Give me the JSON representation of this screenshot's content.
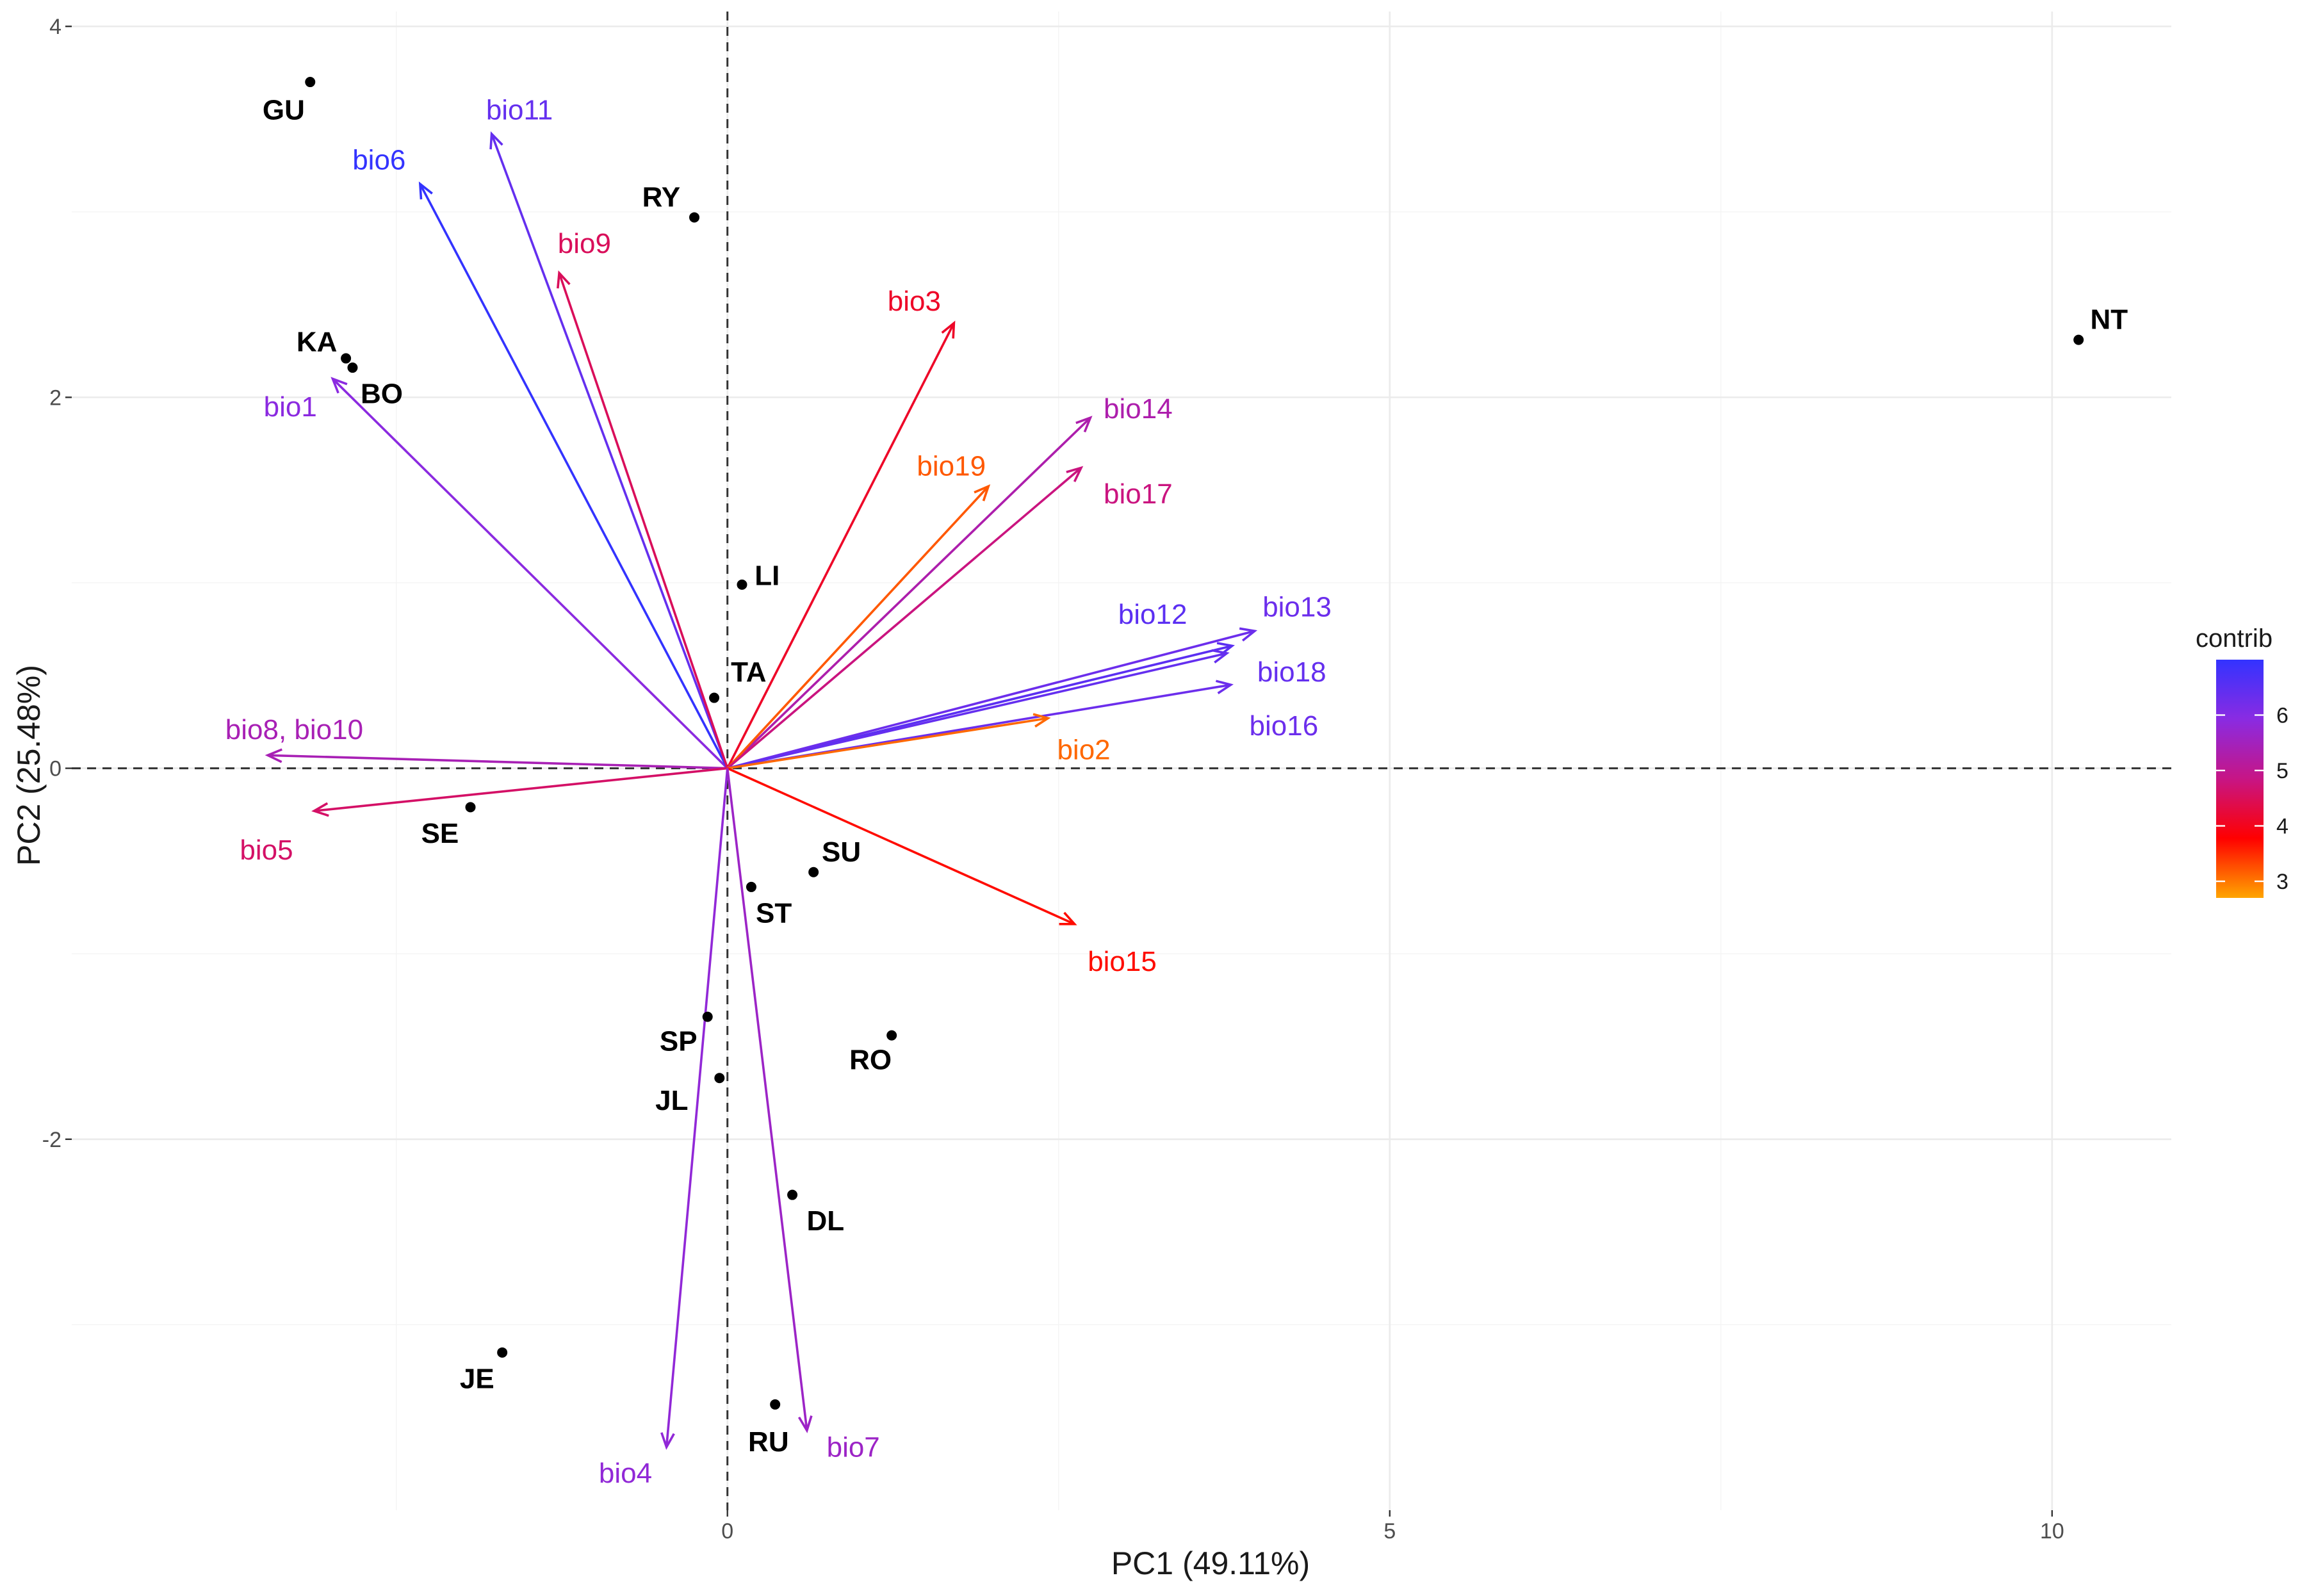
{
  "chart_data": {
    "type": "scatter",
    "subtype": "pca-biplot",
    "xlabel": "PC1 (49.11%)",
    "ylabel": "PC2 (25.48%)",
    "xlim": [
      -4.95,
      10.9
    ],
    "ylim": [
      -4.0,
      4.08
    ],
    "xticks": [
      0,
      5,
      10
    ],
    "yticks": [
      -2,
      0,
      2,
      4
    ],
    "xtick_labels": [
      "0",
      "5",
      "10"
    ],
    "ytick_labels": [
      "-2",
      "0",
      "2",
      "4"
    ],
    "individuals": [
      {
        "label": "GU",
        "x": -3.15,
        "y": 3.7
      },
      {
        "label": "RY",
        "x": -0.25,
        "y": 2.97
      },
      {
        "label": "KA",
        "x": -2.88,
        "y": 2.21
      },
      {
        "label": "BO",
        "x": -2.83,
        "y": 2.16
      },
      {
        "label": "LI",
        "x": 0.11,
        "y": 0.99
      },
      {
        "label": "TA",
        "x": -0.1,
        "y": 0.38
      },
      {
        "label": "SE",
        "x": -1.94,
        "y": -0.21
      },
      {
        "label": "SU",
        "x": 0.65,
        "y": -0.56
      },
      {
        "label": "ST",
        "x": 0.18,
        "y": -0.64
      },
      {
        "label": "SP",
        "x": -0.15,
        "y": -1.34
      },
      {
        "label": "RO",
        "x": 1.24,
        "y": -1.44
      },
      {
        "label": "JL",
        "x": -0.06,
        "y": -1.67
      },
      {
        "label": "DL",
        "x": 0.49,
        "y": -2.3
      },
      {
        "label": "JE",
        "x": -1.7,
        "y": -3.15
      },
      {
        "label": "RU",
        "x": 0.36,
        "y": -3.43
      },
      {
        "label": "NT",
        "x": 10.2,
        "y": 2.31
      }
    ],
    "variables": [
      {
        "label": "bio1",
        "x": -2.98,
        "y": 2.1,
        "contrib": 5.9
      },
      {
        "label": "bio6",
        "x": -2.32,
        "y": 3.15,
        "contrib": 7.0
      },
      {
        "label": "bio11",
        "x": -1.78,
        "y": 3.42,
        "contrib": 6.4
      },
      {
        "label": "bio9",
        "x": -1.27,
        "y": 2.67,
        "contrib": 4.5
      },
      {
        "label": "bio3",
        "x": 1.71,
        "y": 2.4,
        "contrib": 4.1
      },
      {
        "label": "bio14",
        "x": 2.74,
        "y": 1.89,
        "contrib": 5.3
      },
      {
        "label": "bio19",
        "x": 1.97,
        "y": 1.52,
        "contrib": 3.2
      },
      {
        "label": "bio17",
        "x": 2.67,
        "y": 1.62,
        "contrib": 4.8
      },
      {
        "label": "bio12",
        "x": 3.81,
        "y": 0.66,
        "contrib": 6.5
      },
      {
        "label": "bio13",
        "x": 3.98,
        "y": 0.74,
        "contrib": 6.3
      },
      {
        "label": "bio18",
        "x": 3.77,
        "y": 0.62,
        "contrib": 6.4
      },
      {
        "label": "bio16",
        "x": 3.8,
        "y": 0.45,
        "contrib": 6.3
      },
      {
        "label": "bio2",
        "x": 2.42,
        "y": 0.27,
        "contrib": 3.1
      },
      {
        "label": "bio8, bio10",
        "x": -3.47,
        "y": 0.07,
        "contrib": 5.4
      },
      {
        "label": "bio5",
        "x": -3.12,
        "y": -0.23,
        "contrib": 4.6
      },
      {
        "label": "bio15",
        "x": 2.62,
        "y": -0.84,
        "contrib": 3.7
      },
      {
        "label": "bio4",
        "x": -0.46,
        "y": -3.66,
        "contrib": 5.8
      },
      {
        "label": "bio7",
        "x": 0.6,
        "y": -3.57,
        "contrib": 5.6
      }
    ],
    "variable_label_positions": [
      {
        "label": "bio1",
        "x": -3.3,
        "y": 1.95
      },
      {
        "label": "bio6",
        "x": -2.63,
        "y": 3.28
      },
      {
        "label": "bio11",
        "x": -1.57,
        "y": 3.55
      },
      {
        "label": "bio9",
        "x": -1.08,
        "y": 2.83
      },
      {
        "label": "bio3",
        "x": 1.41,
        "y": 2.52
      },
      {
        "label": "bio14",
        "x": 3.1,
        "y": 1.94
      },
      {
        "label": "bio19",
        "x": 1.69,
        "y": 1.63
      },
      {
        "label": "bio17",
        "x": 3.1,
        "y": 1.48
      },
      {
        "label": "bio12",
        "x": 3.21,
        "y": 0.83
      },
      {
        "label": "bio13",
        "x": 4.3,
        "y": 0.87
      },
      {
        "label": "bio18",
        "x": 4.26,
        "y": 0.52
      },
      {
        "label": "bio16",
        "x": 4.2,
        "y": 0.23
      },
      {
        "label": "bio2",
        "x": 2.69,
        "y": 0.1
      },
      {
        "label": "bio8, bio10",
        "x": -3.27,
        "y": 0.21
      },
      {
        "label": "bio5",
        "x": -3.48,
        "y": -0.44
      },
      {
        "label": "bio15",
        "x": 2.98,
        "y": -1.04
      },
      {
        "label": "bio4",
        "x": -0.77,
        "y": -3.8
      },
      {
        "label": "bio7",
        "x": 0.95,
        "y": -3.66
      }
    ],
    "individual_label_positions": [
      {
        "label": "GU",
        "x": -3.35,
        "y": 3.55
      },
      {
        "label": "RY",
        "x": -0.5,
        "y": 3.08
      },
      {
        "label": "KA",
        "x": -3.1,
        "y": 2.3
      },
      {
        "label": "BO",
        "x": -2.61,
        "y": 2.02
      },
      {
        "label": "LI",
        "x": 0.3,
        "y": 1.04
      },
      {
        "label": "TA",
        "x": 0.16,
        "y": 0.52
      },
      {
        "label": "SE",
        "x": -2.17,
        "y": -0.35
      },
      {
        "label": "SU",
        "x": 0.86,
        "y": -0.45
      },
      {
        "label": "ST",
        "x": 0.35,
        "y": -0.78
      },
      {
        "label": "SP",
        "x": -0.37,
        "y": -1.47
      },
      {
        "label": "RO",
        "x": 1.08,
        "y": -1.57
      },
      {
        "label": "JL",
        "x": -0.42,
        "y": -1.79
      },
      {
        "label": "DL",
        "x": 0.74,
        "y": -2.44
      },
      {
        "label": "JE",
        "x": -1.89,
        "y": -3.29
      },
      {
        "label": "RU",
        "x": 0.31,
        "y": -3.63
      },
      {
        "label": "NT",
        "x": 10.43,
        "y": 2.42
      }
    ],
    "legend": {
      "title": "contrib",
      "position": "right",
      "min": 2.7,
      "max": 7.0,
      "ticks": [
        3,
        4,
        5,
        6
      ],
      "tick_labels": [
        "3",
        "4",
        "5",
        "6"
      ],
      "gradient": [
        "#FFA500",
        "#FF0000",
        "#C71585",
        "#8A2BE2",
        "#3333FF"
      ]
    },
    "reference_lines": {
      "x": 0,
      "y": 0,
      "style": "dashed"
    },
    "grid": true
  }
}
